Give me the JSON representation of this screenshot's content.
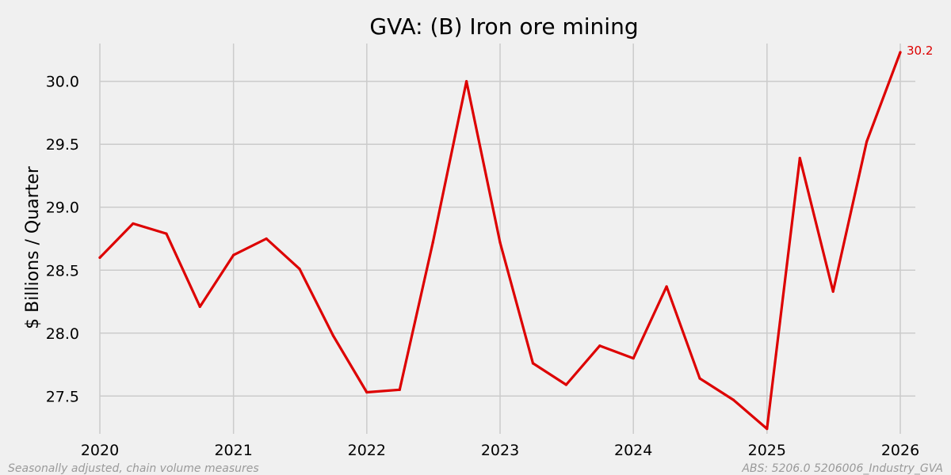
{
  "chart_data": {
    "type": "line",
    "title": "GVA: (B)  Iron ore mining",
    "ylabel": "$ Billions  / Quarter",
    "xlabel": "",
    "xlim": [
      "2020-01-01",
      "2026-01-01"
    ],
    "ylim": [
      27.2,
      30.3
    ],
    "x_ticks": [
      "2020",
      "2021",
      "2022",
      "2023",
      "2024",
      "2025",
      "2026"
    ],
    "y_ticks": [
      "27.5",
      "28.0",
      "28.5",
      "29.0",
      "29.5",
      "30.0"
    ],
    "grid": true,
    "series": [
      {
        "color": "#dd0000",
        "x": [
          "2020-01-01",
          "2020-04-01",
          "2020-07-01",
          "2020-10-01",
          "2021-01-01",
          "2021-04-01",
          "2021-07-01",
          "2021-10-01",
          "2022-01-01",
          "2022-04-01",
          "2022-07-01",
          "2022-10-01",
          "2023-01-01",
          "2023-04-01",
          "2023-07-01",
          "2023-10-01",
          "2024-01-01",
          "2024-04-01",
          "2024-07-01",
          "2024-10-01",
          "2025-01-01",
          "2025-04-01",
          "2025-07-01",
          "2025-10-01",
          "2026-01-01"
        ],
        "values": [
          28.6,
          28.87,
          28.79,
          28.21,
          28.62,
          28.75,
          28.51,
          27.98,
          27.53,
          27.55,
          28.72,
          30.0,
          28.72,
          27.76,
          27.59,
          27.9,
          27.8,
          28.37,
          27.64,
          27.47,
          27.24,
          29.39,
          28.33,
          29.52,
          30.23
        ]
      }
    ],
    "end_label": "30.2"
  },
  "footer": {
    "left": "Seasonally adjusted, chain volume measures",
    "right": "ABS: 5206.0 5206006_Industry_GVA"
  }
}
